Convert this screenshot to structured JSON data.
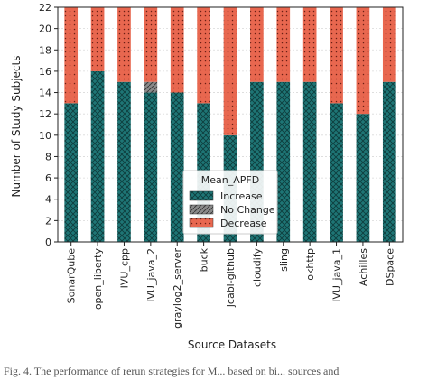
{
  "chart_data": {
    "type": "bar",
    "stacked": true,
    "categories": [
      "SonarQube",
      "open_liberty",
      "IVU_cpp",
      "IVU_java_2",
      "graylog2_server",
      "buck",
      "jcabi-github",
      "cloudify",
      "sling",
      "okhttp",
      "IVU_java_1",
      "Achilles",
      "DSpace"
    ],
    "series": [
      {
        "name": "Increase",
        "values": [
          13,
          16,
          15,
          14,
          14,
          13,
          10,
          15,
          15,
          15,
          13,
          12,
          15
        ],
        "color": "#1e7575",
        "pattern": "crosshatch"
      },
      {
        "name": "No Change",
        "values": [
          0,
          0,
          0,
          1,
          0,
          0,
          0,
          0,
          0,
          0,
          0,
          0,
          0
        ],
        "color": "#7a7a7a",
        "pattern": "diagonal"
      },
      {
        "name": "Decrease",
        "values": [
          9,
          6,
          7,
          7,
          8,
          9,
          12,
          7,
          7,
          7,
          9,
          10,
          7
        ],
        "color": "#e8674f",
        "pattern": "dots"
      }
    ],
    "xlabel": "Source Datasets",
    "ylabel": "Number of Study Subjects",
    "ylim": [
      0,
      22
    ],
    "yticks": [
      0,
      2,
      4,
      6,
      8,
      10,
      12,
      14,
      16,
      18,
      20,
      22
    ],
    "grid": true,
    "legend": {
      "title": "Mean_APFD",
      "position": "lower-center"
    }
  },
  "caption": "Fig. 4.  The performance of rerun strategies for M... based on bi... sources and"
}
